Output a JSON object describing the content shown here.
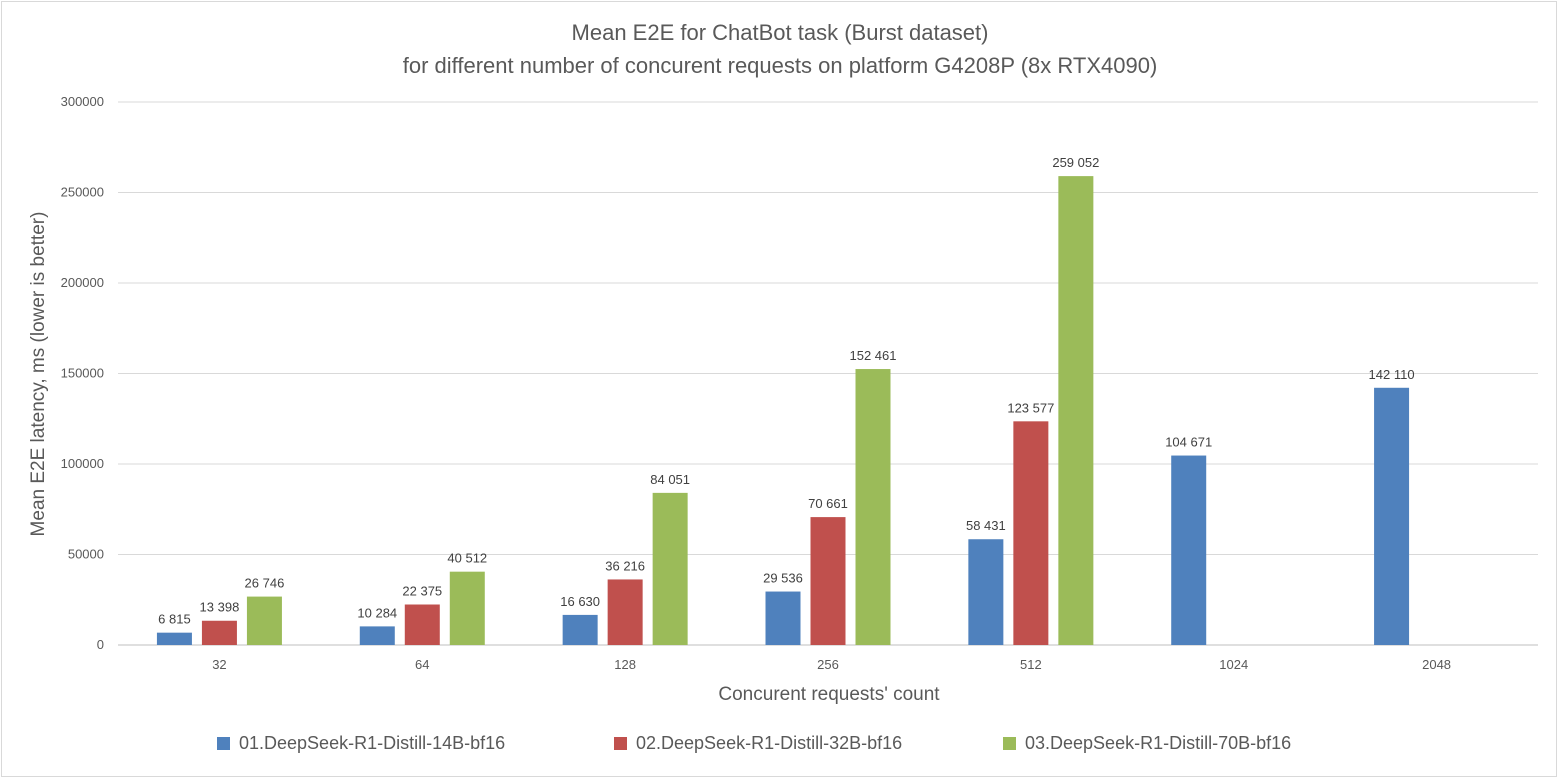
{
  "chart_data": {
    "type": "bar",
    "title": "Mean E2E for ChatBot task (Burst dataset)",
    "subtitle": "for different number of concurent requests on platform G4208P (8x RTX4090)",
    "xlabel": "Concurent requests' count",
    "ylabel": "Mean E2E latency, ms (lower is better)",
    "ylim": [
      0,
      300000
    ],
    "yticks": [
      0,
      50000,
      100000,
      150000,
      200000,
      250000,
      300000
    ],
    "ytick_labels": [
      "0",
      "50000",
      "100000",
      "150000",
      "200000",
      "250000",
      "300000"
    ],
    "grid": true,
    "legend_position": "bottom",
    "categories": [
      "32",
      "64",
      "128",
      "256",
      "512",
      "1024",
      "2048"
    ],
    "series": [
      {
        "name": "01.DeepSeek-R1-Distill-14B-bf16",
        "color": "#4f81bd",
        "values": [
          6815,
          10284,
          16630,
          29536,
          58431,
          104671,
          142110
        ],
        "labels": [
          "6 815",
          "10 284",
          "16 630",
          "29 536",
          "58 431",
          "104 671",
          "142 110"
        ]
      },
      {
        "name": "02.DeepSeek-R1-Distill-32B-bf16",
        "color": "#c0504d",
        "values": [
          13398,
          22375,
          36216,
          70661,
          123577,
          null,
          null
        ],
        "labels": [
          "13 398",
          "22 375",
          "36 216",
          "70 661",
          "123 577",
          null,
          null
        ]
      },
      {
        "name": "03.DeepSeek-R1-Distill-70B-bf16",
        "color": "#9bbb59",
        "values": [
          26746,
          40512,
          84051,
          152461,
          259052,
          null,
          null
        ],
        "labels": [
          "26 746",
          "40 512",
          "84 051",
          "152 461",
          "259 052",
          null,
          null
        ]
      }
    ]
  }
}
